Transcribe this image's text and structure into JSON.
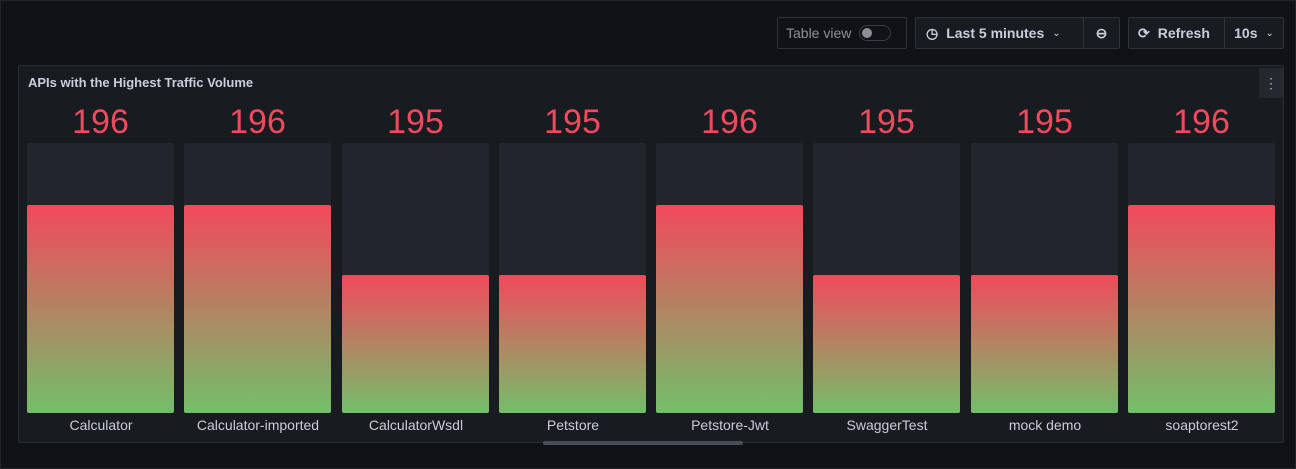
{
  "toolbar": {
    "table_view_label": "Table view",
    "table_view_on": false,
    "time_range": "Last 5 minutes",
    "refresh_label": "Refresh",
    "refresh_interval": "10s"
  },
  "panel": {
    "title": "APIs with the Highest Traffic Volume"
  },
  "chart_data": {
    "type": "bar",
    "title": "APIs with the Highest Traffic Volume",
    "categories": [
      "Calculator",
      "Calculator-imported",
      "CalculatorWsdl",
      "Petstore",
      "Petstore-Jwt",
      "SwaggerTest",
      "mock demo",
      "soaptorest2"
    ],
    "values": [
      196,
      196,
      195,
      195,
      196,
      195,
      195,
      196
    ],
    "ylim": [
      193,
      196.9
    ],
    "colors": {
      "low": "#73bf69",
      "high": "#f2495c"
    }
  }
}
